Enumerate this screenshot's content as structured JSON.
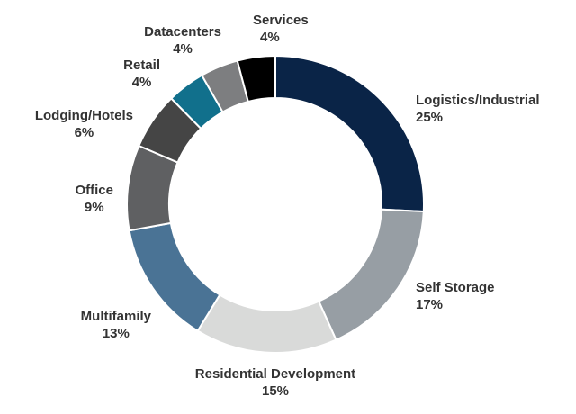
{
  "chart_data": {
    "type": "pie",
    "donut": true,
    "title": "",
    "slices": [
      {
        "label": "Logistics/Industrial",
        "value": 25,
        "pct_label": "25%",
        "color": "#0a2447"
      },
      {
        "label": "Self Storage",
        "value": 17,
        "pct_label": "17%",
        "color": "#979ea4"
      },
      {
        "label": "Residential Development",
        "value": 15,
        "pct_label": "15%",
        "color": "#d9dad9"
      },
      {
        "label": "Multifamily",
        "value": 13,
        "pct_label": "13%",
        "color": "#4a7395"
      },
      {
        "label": "Office",
        "value": 9,
        "pct_label": "9%",
        "color": "#5f6062"
      },
      {
        "label": "Lodging/Hotels",
        "value": 6,
        "pct_label": "6%",
        "color": "#454545"
      },
      {
        "label": "Retail",
        "value": 4,
        "pct_label": "4%",
        "color": "#11708c"
      },
      {
        "label": "Datacenters",
        "value": 4,
        "pct_label": "4%",
        "color": "#7d7e80"
      },
      {
        "label": "Services",
        "value": 4,
        "pct_label": "4%",
        "color": "#000000"
      }
    ]
  }
}
